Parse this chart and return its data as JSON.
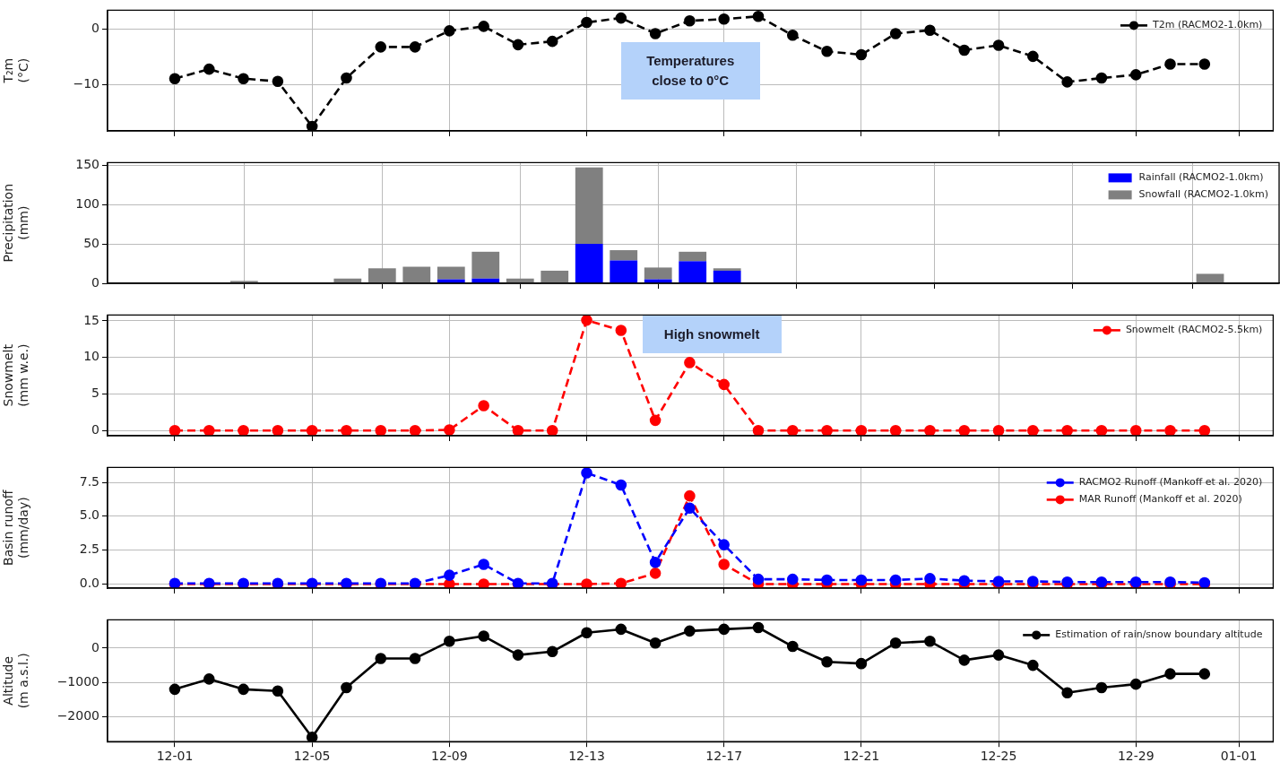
{
  "chart_data": [
    {
      "type": "line",
      "ylabel": "T₂m\n(°C)",
      "x": [
        "2019-12-01",
        "2019-12-02",
        "2019-12-03",
        "2019-12-04",
        "2019-12-05",
        "2019-12-06",
        "2019-12-07",
        "2019-12-08",
        "2019-12-09",
        "2019-12-10",
        "2019-12-11",
        "2019-12-12",
        "2019-12-13",
        "2019-12-14",
        "2019-12-15",
        "2019-12-16",
        "2019-12-17",
        "2019-12-18",
        "2019-12-19",
        "2019-12-20",
        "2019-12-21",
        "2019-12-22",
        "2019-12-23",
        "2019-12-24",
        "2019-12-25",
        "2019-12-26",
        "2019-12-27",
        "2019-12-28",
        "2019-12-29",
        "2019-12-30",
        "2019-12-31"
      ],
      "series": [
        {
          "name": "T2m (RACMO2-1.0km)",
          "color": "#000000",
          "line_style": "dashed",
          "values": [
            -8.9,
            -7.2,
            -8.9,
            -9.4,
            -17.5,
            -8.8,
            -3.2,
            -3.2,
            -0.3,
            0.5,
            -2.8,
            -2.2,
            1.2,
            2.0,
            -0.8,
            1.5,
            1.8,
            2.3,
            -1.1,
            -4.0,
            -4.6,
            -0.8,
            -0.2,
            -3.8,
            -2.9,
            -4.9,
            -9.5,
            -8.8,
            -8.2,
            -6.3,
            -6.3
          ]
        }
      ],
      "xlim": [
        "2019-11-29T01:00",
        "2020-01-02"
      ],
      "xticks": [
        {
          "value": "2019-12-01",
          "label": null
        },
        {
          "value": "2019-12-05",
          "label": null
        },
        {
          "value": "2019-12-09",
          "label": null
        },
        {
          "value": "2019-12-13",
          "label": null
        },
        {
          "value": "2019-12-17",
          "label": null
        },
        {
          "value": "2019-12-21",
          "label": null
        },
        {
          "value": "2019-12-25",
          "label": null
        },
        {
          "value": "2019-12-29",
          "label": null
        },
        {
          "value": "2020-01-01",
          "label": null
        }
      ],
      "ylim": [
        -18.3,
        3.4
      ],
      "yticks": [
        {
          "value": -10,
          "label": "−10"
        },
        0
      ],
      "annotations": [
        "Temperatures close to 0°C"
      ],
      "grid": true,
      "legend": "top right",
      "marker": "circle",
      "tick_labels": "y"
    },
    {
      "type": "bar",
      "stacked": true,
      "ylabel": "Precipitation\n(mm)",
      "x": [
        "2019-12-01",
        "2019-12-02",
        "2019-12-03",
        "2019-12-04",
        "2019-12-05",
        "2019-12-06",
        "2019-12-07",
        "2019-12-08",
        "2019-12-09",
        "2019-12-10",
        "2019-12-11",
        "2019-12-12",
        "2019-12-13",
        "2019-12-14",
        "2019-12-15",
        "2019-12-16",
        "2019-12-17",
        "2019-12-18",
        "2019-12-19",
        "2019-12-20",
        "2019-12-21",
        "2019-12-22",
        "2019-12-23",
        "2019-12-24",
        "2019-12-25",
        "2019-12-26",
        "2019-12-27",
        "2019-12-28",
        "2019-12-29",
        "2019-12-30",
        "2019-12-31"
      ],
      "series": [
        {
          "name": "Rainfall (RACMO2-1.0km)",
          "color": "#0000ff",
          "values": [
            0,
            0,
            0,
            0,
            0,
            0,
            0,
            0,
            5,
            6,
            0,
            0,
            50,
            29,
            5,
            28,
            16,
            0,
            0,
            0,
            0,
            0,
            0,
            0,
            0,
            0,
            0,
            0,
            0,
            0,
            0
          ]
        },
        {
          "name": "Snowfall (RACMO2-1.0km)",
          "color": "#808080",
          "values": [
            0,
            0,
            3,
            0,
            0,
            6,
            19,
            21,
            16,
            34,
            6,
            16,
            97,
            13,
            15,
            12,
            3,
            0,
            0,
            0,
            0,
            0,
            0,
            0,
            0,
            0,
            0,
            0,
            0,
            0,
            12
          ]
        }
      ],
      "xlim": [
        "2019-11-29T01:00",
        "2020-01-02"
      ],
      "xticks": [
        {
          "value": "2019-12-01",
          "label": null
        },
        {
          "value": "2019-12-05",
          "label": null
        },
        {
          "value": "2019-12-09",
          "label": null
        },
        {
          "value": "2019-12-13",
          "label": null
        },
        {
          "value": "2019-12-17",
          "label": null
        },
        {
          "value": "2019-12-21",
          "label": null
        },
        {
          "value": "2019-12-25",
          "label": null
        },
        {
          "value": "2019-12-29",
          "label": null
        },
        {
          "value": "2020-01-01",
          "label": null
        }
      ],
      "ylim": [
        0,
        153
      ],
      "yticks": [
        0,
        50,
        100,
        150
      ],
      "grid": true,
      "legend": "top right",
      "tick_labels": "y"
    },
    {
      "type": "line",
      "ylabel": "Snowmelt\n(mm w.e.)",
      "x": [
        "2019-12-01",
        "2019-12-02",
        "2019-12-03",
        "2019-12-04",
        "2019-12-05",
        "2019-12-06",
        "2019-12-07",
        "2019-12-08",
        "2019-12-09",
        "2019-12-10",
        "2019-12-11",
        "2019-12-12",
        "2019-12-13",
        "2019-12-14",
        "2019-12-15",
        "2019-12-16",
        "2019-12-17",
        "2019-12-18",
        "2019-12-19",
        "2019-12-20",
        "2019-12-21",
        "2019-12-22",
        "2019-12-23",
        "2019-12-24",
        "2019-12-25",
        "2019-12-26",
        "2019-12-27",
        "2019-12-28",
        "2019-12-29",
        "2019-12-30",
        "2019-12-31"
      ],
      "series": [
        {
          "name": "Snowmelt (RACMO2-5.5km)",
          "color": "#ff0000",
          "line_style": "dashed",
          "values": [
            0,
            0,
            0,
            0,
            0,
            0,
            0,
            0,
            0.1,
            3.4,
            0,
            0,
            15.1,
            13.7,
            1.4,
            9.3,
            6.3,
            0,
            0,
            0,
            0,
            0,
            0,
            0,
            0,
            0,
            0,
            0,
            0,
            0,
            0
          ]
        }
      ],
      "xlim": [
        "2019-11-29T01:00",
        "2020-01-02"
      ],
      "xticks": [
        {
          "value": "2019-12-01",
          "label": null
        },
        {
          "value": "2019-12-05",
          "label": null
        },
        {
          "value": "2019-12-09",
          "label": null
        },
        {
          "value": "2019-12-13",
          "label": null
        },
        {
          "value": "2019-12-17",
          "label": null
        },
        {
          "value": "2019-12-21",
          "label": null
        },
        {
          "value": "2019-12-25",
          "label": null
        },
        {
          "value": "2019-12-29",
          "label": null
        },
        {
          "value": "2020-01-01",
          "label": null
        }
      ],
      "ylim": [
        -0.7,
        15.8
      ],
      "yticks": [
        0,
        5,
        10,
        15
      ],
      "annotations": [
        "High snowmelt"
      ],
      "grid": true,
      "legend": "top right",
      "marker": "circle",
      "tick_labels": "y"
    },
    {
      "type": "line",
      "ylabel": "Basin runoff\n(mm/day)",
      "x": [
        "2019-12-01",
        "2019-12-02",
        "2019-12-03",
        "2019-12-04",
        "2019-12-05",
        "2019-12-06",
        "2019-12-07",
        "2019-12-08",
        "2019-12-09",
        "2019-12-10",
        "2019-12-11",
        "2019-12-12",
        "2019-12-13",
        "2019-12-14",
        "2019-12-15",
        "2019-12-16",
        "2019-12-17",
        "2019-12-18",
        "2019-12-19",
        "2019-12-20",
        "2019-12-21",
        "2019-12-22",
        "2019-12-23",
        "2019-12-24",
        "2019-12-25",
        "2019-12-26",
        "2019-12-27",
        "2019-12-28",
        "2019-12-29",
        "2019-12-30",
        "2019-12-31"
      ],
      "series": [
        {
          "name": "RACMO2 Runoff (Mankoff et al. 2020)",
          "color": "#0000ff",
          "line_style": "dashed",
          "values": [
            0.05,
            0.05,
            0.05,
            0.05,
            0.05,
            0.05,
            0.05,
            0.05,
            0.65,
            1.45,
            0.05,
            0.05,
            8.2,
            7.3,
            1.6,
            5.6,
            2.9,
            0.35,
            0.35,
            0.3,
            0.3,
            0.3,
            0.4,
            0.25,
            0.2,
            0.2,
            0.15,
            0.15,
            0.15,
            0.15,
            0.1
          ]
        },
        {
          "name": "MAR Runoff (Mankoff et al. 2020)",
          "color": "#ff0000",
          "line_style": "dashed",
          "values": [
            0,
            0,
            0,
            0,
            0,
            0,
            0,
            0,
            0,
            0,
            0,
            0,
            0,
            0.05,
            0.8,
            6.5,
            1.45,
            0,
            0,
            0,
            0,
            0,
            0,
            0,
            0,
            0,
            0,
            0,
            0,
            0,
            0
          ]
        }
      ],
      "xlim": [
        "2019-11-29T01:00",
        "2020-01-02"
      ],
      "xticks": [
        {
          "value": "2019-12-01",
          "label": null
        },
        {
          "value": "2019-12-05",
          "label": null
        },
        {
          "value": "2019-12-09",
          "label": null
        },
        {
          "value": "2019-12-13",
          "label": null
        },
        {
          "value": "2019-12-17",
          "label": null
        },
        {
          "value": "2019-12-21",
          "label": null
        },
        {
          "value": "2019-12-25",
          "label": null
        },
        {
          "value": "2019-12-29",
          "label": null
        },
        {
          "value": "2020-01-01",
          "label": null
        }
      ],
      "ylim": [
        -0.3,
        8.6
      ],
      "yticks": [
        {
          "value": 0,
          "label": "0.0"
        },
        {
          "value": 2.5,
          "label": "2.5"
        },
        {
          "value": 5,
          "label": "5.0"
        },
        {
          "value": 7.5,
          "label": "7.5"
        }
      ],
      "grid": true,
      "legend": "top right",
      "marker": "circle",
      "tick_labels": "y"
    },
    {
      "type": "line",
      "ylabel": "Altitude\n(m a.s.l.)",
      "x": [
        "2019-12-01",
        "2019-12-02",
        "2019-12-03",
        "2019-12-04",
        "2019-12-05",
        "2019-12-06",
        "2019-12-07",
        "2019-12-08",
        "2019-12-09",
        "2019-12-10",
        "2019-12-11",
        "2019-12-12",
        "2019-12-13",
        "2019-12-14",
        "2019-12-15",
        "2019-12-16",
        "2019-12-17",
        "2019-12-18",
        "2019-12-19",
        "2019-12-20",
        "2019-12-21",
        "2019-12-22",
        "2019-12-23",
        "2019-12-24",
        "2019-12-25",
        "2019-12-26",
        "2019-12-27",
        "2019-12-28",
        "2019-12-29",
        "2019-12-30",
        "2019-12-31"
      ],
      "series": [
        {
          "name": "Estimation of rain/snow boundary altitude",
          "color": "#000000",
          "line_style": "solid",
          "values": [
            -1200,
            -900,
            -1200,
            -1250,
            -2600,
            -1150,
            -300,
            -300,
            200,
            350,
            -200,
            -100,
            450,
            550,
            150,
            500,
            550,
            600,
            50,
            -400,
            -450,
            150,
            200,
            -350,
            -200,
            -500,
            -1300,
            -1150,
            -1050,
            -750,
            -750
          ]
        }
      ],
      "xlim": [
        "2019-11-29T01:00",
        "2020-01-02"
      ],
      "xticks": [
        {
          "value": "2019-12-01",
          "label": "12-01"
        },
        {
          "value": "2019-12-05",
          "label": "12-05"
        },
        {
          "value": "2019-12-09",
          "label": "12-09"
        },
        {
          "value": "2019-12-13",
          "label": "12-13"
        },
        {
          "value": "2019-12-17",
          "label": "12-17"
        },
        {
          "value": "2019-12-21",
          "label": "12-21"
        },
        {
          "value": "2019-12-25",
          "label": "12-25"
        },
        {
          "value": "2019-12-29",
          "label": "12-29"
        },
        {
          "value": "2020-01-01",
          "label": "01-01"
        }
      ],
      "ylim": [
        -2725,
        825
      ],
      "yticks": [
        {
          "value": -2000,
          "label": "−2000"
        },
        {
          "value": -1000,
          "label": "−1000"
        },
        0
      ],
      "grid": true,
      "legend": "top right",
      "marker": "circle"
    }
  ]
}
